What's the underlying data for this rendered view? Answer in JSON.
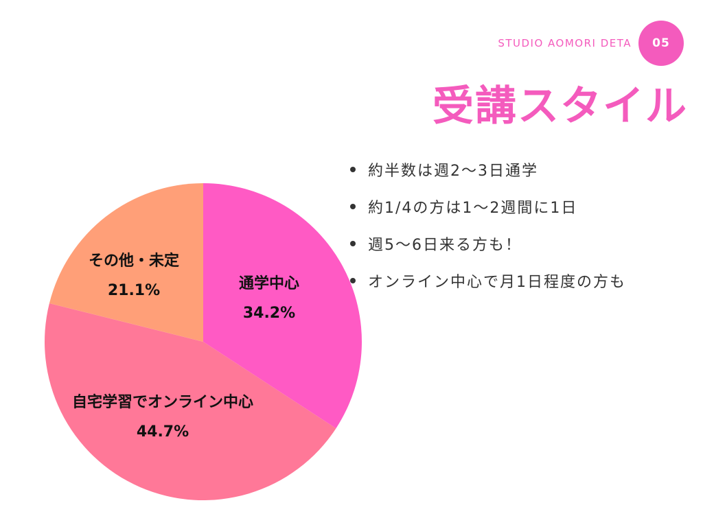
{
  "header": {
    "studio_label": "STUDIO  AOMORI DETA",
    "page_number": "05",
    "title": "受講スタイル"
  },
  "bullets": [
    "約半数は週2〜3日通学",
    "約1/4の方は1〜2週間に1日",
    "週5〜6日来る方も！",
    "オンライン中心で月1日程度の方も"
  ],
  "chart_data": {
    "type": "pie",
    "title": "",
    "slices": [
      {
        "label": "通学中心",
        "value": 34.2,
        "value_label": "34.2%",
        "color": "#ff5ac4"
      },
      {
        "label": "自宅学習でオンライン中心",
        "value": 44.7,
        "value_label": "44.7%",
        "color": "#ff7898"
      },
      {
        "label": "その他・未定",
        "value": 21.1,
        "value_label": "21.1%",
        "color": "#ff9f78"
      }
    ],
    "start": "12 o'clock, clockwise",
    "legend": "none"
  },
  "colors": {
    "accent": "#f45bbd",
    "text": "#333333"
  }
}
